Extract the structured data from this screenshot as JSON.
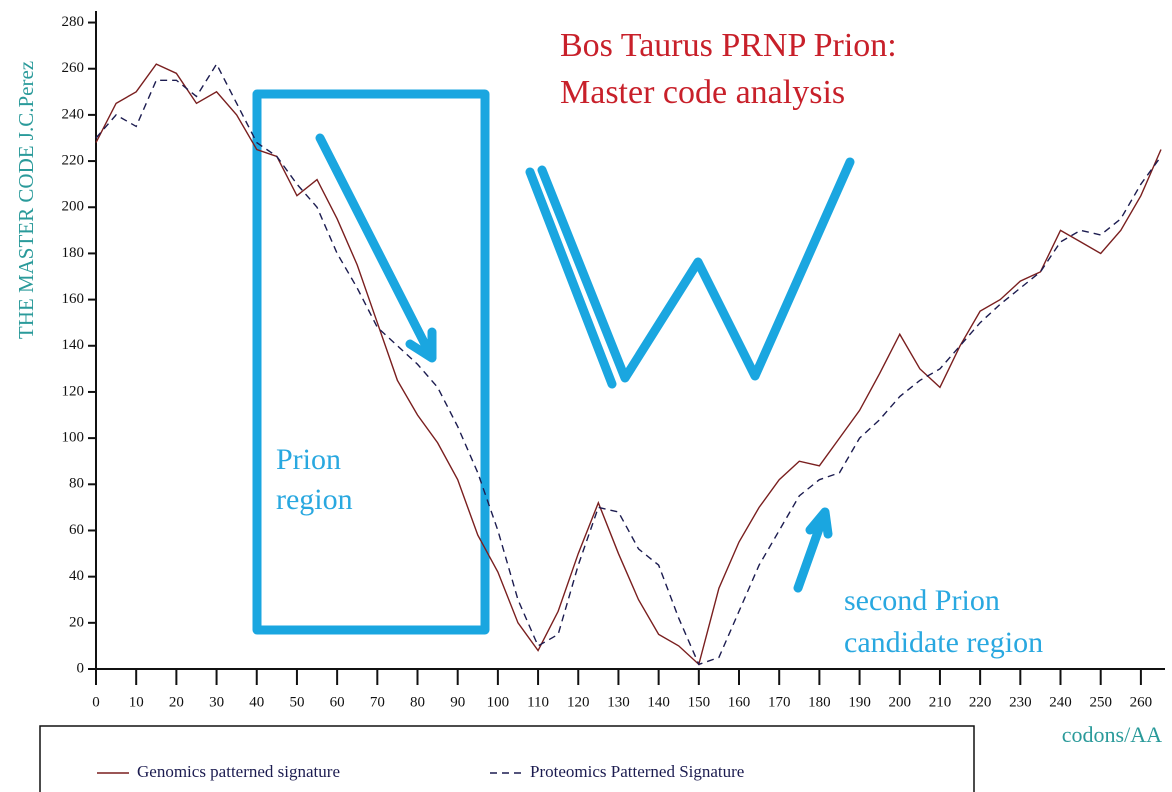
{
  "chart_data": {
    "type": "line",
    "title": "Bos Taurus PRNP Prion:",
    "subtitle": "Master code analysis",
    "y_label": "THE MASTER CODE J.C.Perez",
    "x_label": "codons/AA",
    "annotations": [
      "Prion",
      "region",
      "second Prion",
      "candidate region"
    ],
    "x": [
      0,
      5,
      10,
      15,
      20,
      25,
      30,
      35,
      40,
      45,
      50,
      55,
      60,
      65,
      70,
      75,
      80,
      85,
      90,
      95,
      100,
      105,
      110,
      115,
      120,
      125,
      130,
      135,
      140,
      145,
      150,
      155,
      160,
      165,
      170,
      175,
      180,
      185,
      190,
      195,
      200,
      205,
      210,
      215,
      220,
      225,
      230,
      235,
      240,
      245,
      250,
      255,
      260,
      265
    ],
    "series": [
      {
        "name": "Genomics patterned signature",
        "color": "#7a1f1f",
        "dash": false,
        "values": [
          228,
          245,
          250,
          262,
          258,
          245,
          250,
          240,
          225,
          222,
          205,
          212,
          195,
          175,
          150,
          125,
          110,
          98,
          82,
          58,
          42,
          20,
          8,
          25,
          50,
          72,
          50,
          30,
          15,
          10,
          2,
          35,
          55,
          70,
          82,
          90,
          88,
          100,
          112,
          128,
          145,
          130,
          122,
          140,
          155,
          160,
          168,
          172,
          190,
          185,
          180,
          190,
          205,
          225
        ]
      },
      {
        "name": "Proteomics Patterned Signature",
        "color": "#1c1c50",
        "dash": true,
        "values": [
          230,
          240,
          235,
          255,
          255,
          248,
          262,
          245,
          228,
          222,
          210,
          200,
          180,
          165,
          148,
          140,
          132,
          122,
          105,
          85,
          60,
          30,
          10,
          15,
          45,
          70,
          68,
          52,
          45,
          22,
          2,
          5,
          25,
          45,
          60,
          75,
          82,
          85,
          100,
          108,
          118,
          125,
          130,
          140,
          150,
          158,
          165,
          172,
          185,
          190,
          188,
          195,
          210,
          222
        ]
      }
    ],
    "xlim": [
      0,
      266
    ],
    "ylim": [
      0,
      285
    ],
    "xticks": [
      0,
      10,
      20,
      30,
      40,
      50,
      60,
      70,
      80,
      90,
      100,
      110,
      120,
      130,
      140,
      150,
      160,
      170,
      180,
      190,
      200,
      210,
      220,
      230,
      240,
      250,
      260
    ],
    "yticks": [
      0,
      20,
      40,
      60,
      80,
      100,
      120,
      140,
      160,
      180,
      200,
      220,
      240,
      260,
      280
    ]
  }
}
